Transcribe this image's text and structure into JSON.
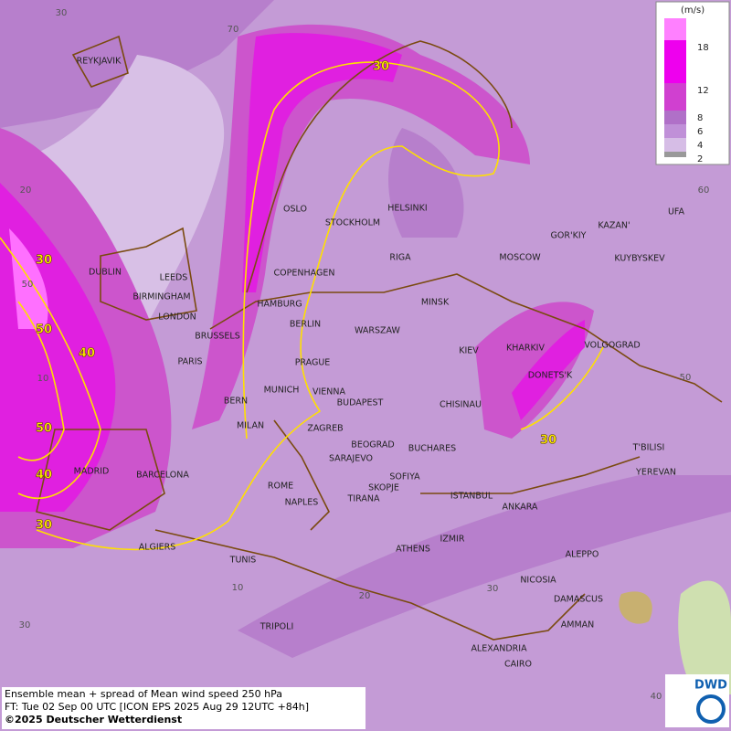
{
  "map": {
    "cities": [
      "REYKJAVIK",
      "OSLO",
      "STOCKHOLM",
      "HELSINKI",
      "DUBLIN",
      "LEEDS",
      "BIRMINGHAM",
      "LONDON",
      "RIGA",
      "MOSCOW",
      "GOR'KIY",
      "KAZAN'",
      "UFA",
      "KUYBYSKEV",
      "COPENHAGEN",
      "HAMBURG",
      "MINSK",
      "BERLIN",
      "BRUSSELS",
      "WARSZAW",
      "KIEV",
      "KHARKIV",
      "VOLGOGRAD",
      "PARIS",
      "PRAGUE",
      "DONETS'K",
      "BERN",
      "MUNICH",
      "VIENNA",
      "BUDAPEST",
      "CHISINAU",
      "MILAN",
      "ZAGREB",
      "BEOGRAD",
      "BUCHARES",
      "T'BILISI",
      "MADRID",
      "BARCELONA",
      "SARAJEVO",
      "SOFIYA",
      "YEREVAN",
      "ROME",
      "SKOPJE",
      "NAPLES",
      "TIRANA",
      "ISTANBUL",
      "ANKARA",
      "ALGIERS",
      "ATHENS",
      "IZMIR",
      "TUNIS",
      "ALEPPO",
      "NICOSIA",
      "DAMASCUS",
      "AMMAN",
      "TRIPOLI",
      "ALEXANDRIA",
      "CAIRO"
    ],
    "contour_labels": [
      30,
      30,
      50,
      40,
      50,
      40,
      30,
      30
    ],
    "graticule_labels": [
      30,
      70,
      20,
      60,
      50,
      10,
      50,
      40,
      30,
      10,
      20,
      30
    ],
    "legend": {
      "unit": "(m/s)",
      "ticks": [
        18,
        12,
        8,
        6,
        4,
        2
      ]
    },
    "footer": [
      "Ensemble mean + spread of Mean wind speed 250 hPa",
      "FT: Tue 02 Sep 00 UTC [ICON EPS 2025 Aug 29 12UTC +84h]",
      "©2025 Deutscher Wetterdienst"
    ],
    "logo": "DWD"
  }
}
